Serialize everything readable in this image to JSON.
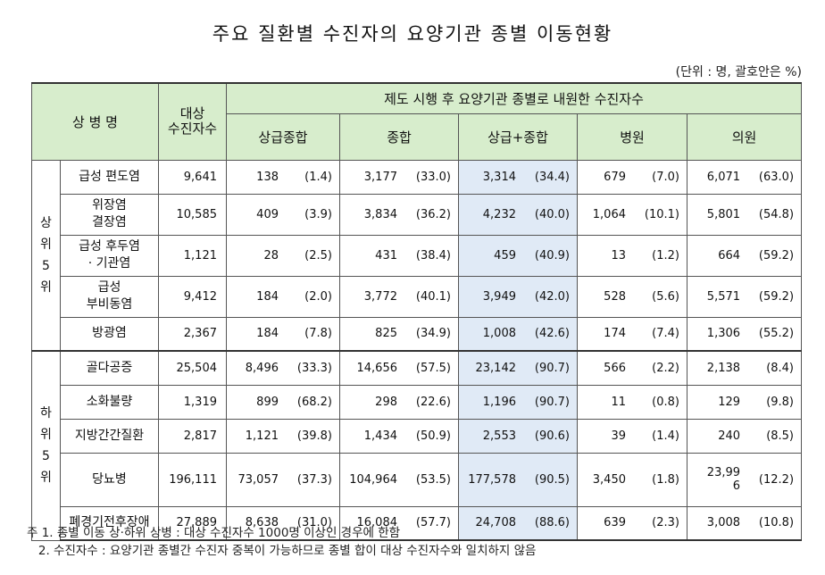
{
  "title": "주요 질환별 수진자의 요양기관 종별 이동현황",
  "unit": "(단위 : 명, 괄호안은 %)",
  "header": {
    "disease": "상 병 명",
    "target": [
      "대상",
      "수진자수"
    ],
    "span": "제도 시행 후 요양기관 종별로 내원한 수진자수",
    "cols": [
      "상급종합",
      "종합",
      "상급+종합",
      "병원",
      "의원"
    ]
  },
  "groups": [
    {
      "label": "상\n위\n5\n위",
      "rows": [
        {
          "name": "급성 편도염",
          "target": "9,641",
          "cells": [
            [
              "138",
              "(1.4)"
            ],
            [
              "3,177",
              "(33.0)"
            ],
            [
              "3,314",
              "(34.4)"
            ],
            [
              "679",
              "(7.0)"
            ],
            [
              "6,071",
              "(63.0)"
            ]
          ]
        },
        {
          "name": "위장염\n결장염",
          "target": "10,585",
          "cells": [
            [
              "409",
              "(3.9)"
            ],
            [
              "3,834",
              "(36.2)"
            ],
            [
              "4,232",
              "(40.0)"
            ],
            [
              "1,064",
              "(10.1)"
            ],
            [
              "5,801",
              "(54.8)"
            ]
          ]
        },
        {
          "name": "급성 후두염\n· 기관염",
          "target": "1,121",
          "cells": [
            [
              "28",
              "(2.5)"
            ],
            [
              "431",
              "(38.4)"
            ],
            [
              "459",
              "(40.9)"
            ],
            [
              "13",
              "(1.2)"
            ],
            [
              "664",
              "(59.2)"
            ]
          ]
        },
        {
          "name": "급성\n부비동염",
          "target": "9,412",
          "cells": [
            [
              "184",
              "(2.0)"
            ],
            [
              "3,772",
              "(40.1)"
            ],
            [
              "3,949",
              "(42.0)"
            ],
            [
              "528",
              "(5.6)"
            ],
            [
              "5,571",
              "(59.2)"
            ]
          ]
        },
        {
          "name": "방광염",
          "target": "2,367",
          "cells": [
            [
              "184",
              "(7.8)"
            ],
            [
              "825",
              "(34.9)"
            ],
            [
              "1,008",
              "(42.6)"
            ],
            [
              "174",
              "(7.4)"
            ],
            [
              "1,306",
              "(55.2)"
            ]
          ]
        }
      ]
    },
    {
      "label": "하\n위\n5\n위",
      "rows": [
        {
          "name": "골다공증",
          "target": "25,504",
          "cells": [
            [
              "8,496",
              "(33.3)"
            ],
            [
              "14,656",
              "(57.5)"
            ],
            [
              "23,142",
              "(90.7)"
            ],
            [
              "566",
              "(2.2)"
            ],
            [
              "2,138",
              "(8.4)"
            ]
          ]
        },
        {
          "name": "소화불량",
          "target": "1,319",
          "cells": [
            [
              "899",
              "(68.2)"
            ],
            [
              "298",
              "(22.6)"
            ],
            [
              "1,196",
              "(90.7)"
            ],
            [
              "11",
              "(0.8)"
            ],
            [
              "129",
              "(9.8)"
            ]
          ]
        },
        {
          "name": "지방간간질환",
          "target": "2,817",
          "cells": [
            [
              "1,121",
              "(39.8)"
            ],
            [
              "1,434",
              "(50.9)"
            ],
            [
              "2,553",
              "(90.6)"
            ],
            [
              "39",
              "(1.4)"
            ],
            [
              "240",
              "(8.5)"
            ]
          ]
        },
        {
          "name": "당뇨병",
          "target": "196,111",
          "cells": [
            [
              "73,057",
              "(37.3)"
            ],
            [
              "104,964",
              "(53.5)"
            ],
            [
              "177,578",
              "(90.5)"
            ],
            [
              "3,450",
              "(1.8)"
            ],
            [
              "23,99\n6",
              "(12.2)"
            ]
          ]
        },
        {
          "name": "폐경기전후장애",
          "target": "27,889",
          "cells": [
            [
              "8,638",
              "(31.0)"
            ],
            [
              "16,084",
              "(57.7)"
            ],
            [
              "24,708",
              "(88.6)"
            ],
            [
              "639",
              "(2.3)"
            ],
            [
              "3,008",
              "(10.8)"
            ]
          ]
        }
      ]
    }
  ],
  "notes": [
    "주 1. 종별 이동 상·하위 상병 : 대상 수진자수 1000명 이상인 경우에 한함",
    "   2. 수진자수 : 요양기관 종별간 수진자 중복이 가능하므로 종별 합이 대상 수진자수와 일치하지 않음"
  ],
  "colors": {
    "header_bg": "#d7edcc",
    "highlight_bg": "#e0eaf6"
  }
}
